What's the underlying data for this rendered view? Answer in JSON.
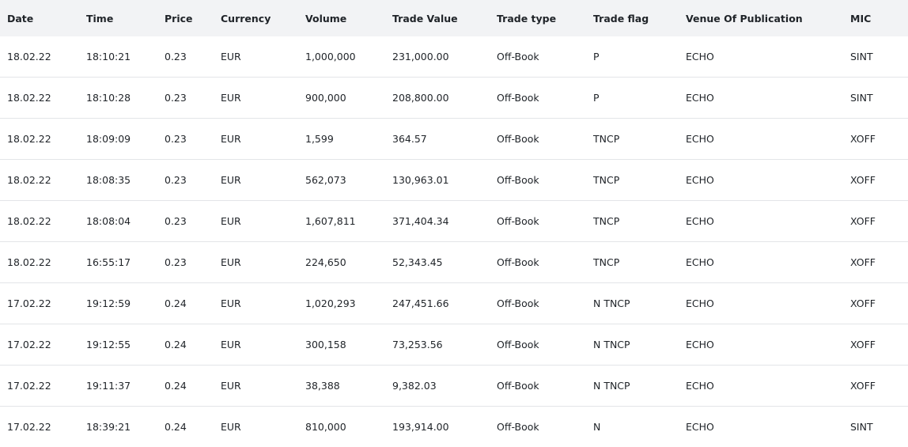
{
  "table": {
    "columns": [
      "Date",
      "Time",
      "Price",
      "Currency",
      "Volume",
      "Trade Value",
      "Trade type",
      "Trade flag",
      "Venue Of Publication",
      "MIC"
    ],
    "rows": [
      [
        "18.02.22",
        "18:10:21",
        "0.23",
        "EUR",
        "1,000,000",
        "231,000.00",
        "Off-Book",
        "P",
        "ECHO",
        "SINT"
      ],
      [
        "18.02.22",
        "18:10:28",
        "0.23",
        "EUR",
        "900,000",
        "208,800.00",
        "Off-Book",
        "P",
        "ECHO",
        "SINT"
      ],
      [
        "18.02.22",
        "18:09:09",
        "0.23",
        "EUR",
        "1,599",
        "364.57",
        "Off-Book",
        "TNCP",
        "ECHO",
        "XOFF"
      ],
      [
        "18.02.22",
        "18:08:35",
        "0.23",
        "EUR",
        "562,073",
        "130,963.01",
        "Off-Book",
        "TNCP",
        "ECHO",
        "XOFF"
      ],
      [
        "18.02.22",
        "18:08:04",
        "0.23",
        "EUR",
        "1,607,811",
        "371,404.34",
        "Off-Book",
        "TNCP",
        "ECHO",
        "XOFF"
      ],
      [
        "18.02.22",
        "16:55:17",
        "0.23",
        "EUR",
        "224,650",
        "52,343.45",
        "Off-Book",
        "TNCP",
        "ECHO",
        "XOFF"
      ],
      [
        "17.02.22",
        "19:12:59",
        "0.24",
        "EUR",
        "1,020,293",
        "247,451.66",
        "Off-Book",
        "N TNCP",
        "ECHO",
        "XOFF"
      ],
      [
        "17.02.22",
        "19:12:55",
        "0.24",
        "EUR",
        "300,158",
        "73,253.56",
        "Off-Book",
        "N TNCP",
        "ECHO",
        "XOFF"
      ],
      [
        "17.02.22",
        "19:11:37",
        "0.24",
        "EUR",
        "38,388",
        "9,382.03",
        "Off-Book",
        "N TNCP",
        "ECHO",
        "XOFF"
      ],
      [
        "17.02.22",
        "18:39:21",
        "0.24",
        "EUR",
        "810,000",
        "193,914.00",
        "Off-Book",
        "N",
        "ECHO",
        "SINT"
      ]
    ]
  },
  "colors": {
    "header_bg": "#f2f3f5",
    "row_divider": "#e3e5e8",
    "text": "#1f2328"
  }
}
